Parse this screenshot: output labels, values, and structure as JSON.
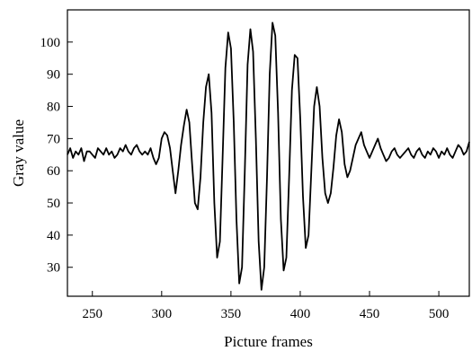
{
  "chart_data": {
    "type": "line",
    "title": "",
    "xlabel": "Picture frames",
    "ylabel": "Gray value",
    "xlim": [
      232,
      522
    ],
    "ylim": [
      21,
      110
    ],
    "grid": false,
    "legend": "none",
    "line_color": "#000000",
    "xticks": [
      250,
      300,
      350,
      400,
      450,
      500
    ],
    "yticks": [
      30,
      40,
      50,
      60,
      70,
      80,
      90,
      100
    ],
    "xtick_labels": [
      "250",
      "300",
      "350",
      "400",
      "450",
      "500"
    ],
    "ytick_labels": [
      "30",
      "40",
      "50",
      "60",
      "70",
      "80",
      "90",
      "100"
    ],
    "series": [
      {
        "x": [
          232,
          234,
          236,
          238,
          240,
          242,
          244,
          246,
          248,
          250,
          252,
          254,
          256,
          258,
          260,
          262,
          264,
          266,
          268,
          270,
          272,
          274,
          276,
          278,
          280,
          282,
          284,
          286,
          288,
          290,
          292,
          294,
          296,
          298,
          300,
          302,
          304,
          306,
          308,
          310,
          312,
          314,
          316,
          318,
          320,
          322,
          324,
          326,
          328,
          330,
          332,
          334,
          336,
          338,
          340,
          342,
          344,
          346,
          348,
          350,
          352,
          354,
          356,
          358,
          360,
          362,
          364,
          366,
          368,
          370,
          372,
          374,
          376,
          378,
          380,
          382,
          384,
          386,
          388,
          390,
          392,
          394,
          396,
          398,
          400,
          402,
          404,
          406,
          408,
          410,
          412,
          414,
          416,
          418,
          420,
          422,
          424,
          426,
          428,
          430,
          432,
          434,
          436,
          438,
          440,
          442,
          444,
          446,
          448,
          450,
          452,
          454,
          456,
          458,
          460,
          462,
          464,
          466,
          468,
          470,
          472,
          474,
          476,
          478,
          480,
          482,
          484,
          486,
          488,
          490,
          492,
          494,
          496,
          498,
          500,
          502,
          504,
          506,
          508,
          510,
          512,
          514,
          516,
          518,
          520,
          522
        ],
        "y": [
          65,
          67,
          64,
          66,
          65,
          67,
          63,
          66,
          66,
          65,
          64,
          67,
          66,
          65,
          67,
          65,
          66,
          64,
          65,
          67,
          66,
          68,
          66,
          65,
          67,
          68,
          66,
          65,
          66,
          65,
          67,
          64,
          62,
          64,
          70,
          72,
          71,
          67,
          60,
          53,
          60,
          68,
          74,
          79,
          75,
          62,
          50,
          48,
          58,
          75,
          86,
          90,
          78,
          50,
          33,
          38,
          64,
          92,
          103,
          98,
          75,
          45,
          25,
          30,
          60,
          93,
          104,
          97,
          70,
          38,
          23,
          30,
          58,
          90,
          106,
          102,
          78,
          45,
          29,
          33,
          58,
          85,
          96,
          95,
          76,
          52,
          36,
          40,
          60,
          80,
          86,
          80,
          64,
          53,
          50,
          53,
          61,
          71,
          76,
          72,
          62,
          58,
          60,
          64,
          68,
          70,
          72,
          68,
          66,
          64,
          66,
          68,
          70,
          67,
          65,
          63,
          64,
          66,
          67,
          65,
          64,
          65,
          66,
          67,
          65,
          64,
          66,
          67,
          65,
          64,
          66,
          65,
          67,
          66,
          64,
          66,
          65,
          67,
          65,
          64,
          66,
          68,
          67,
          65,
          66,
          69
        ]
      }
    ]
  }
}
